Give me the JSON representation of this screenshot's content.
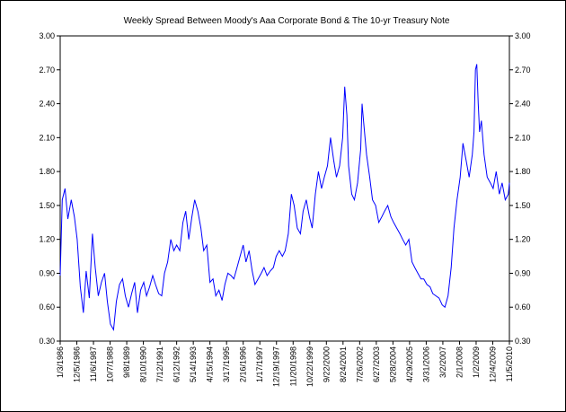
{
  "chart_data": {
    "type": "line",
    "title": "Weekly Spread Between Moody's Aaa Corporate Bond & The 10-yr Treasury Note",
    "xlabel": "",
    "ylabel": "",
    "ylim": [
      0.3,
      3.0
    ],
    "y_ticks": [
      "0.30",
      "0.60",
      "0.90",
      "1.20",
      "1.50",
      "1.80",
      "2.10",
      "2.40",
      "2.70",
      "3.00"
    ],
    "x_range": [
      "1986-01-03",
      "2010-11-05"
    ],
    "x_tick_dates": [
      "1986-01-03",
      "1986-12-05",
      "1987-11-06",
      "1988-10-07",
      "1989-09-08",
      "1990-08-10",
      "1991-07-12",
      "1992-06-12",
      "1993-05-14",
      "1994-04-15",
      "1995-03-17",
      "1996-02-16",
      "1997-01-17",
      "1997-12-19",
      "1998-11-20",
      "1999-10-22",
      "2000-09-22",
      "2001-08-24",
      "2002-07-26",
      "2003-06-27",
      "2004-05-28",
      "2005-04-29",
      "2006-03-31",
      "2007-03-02",
      "2008-02-01",
      "2009-01-02",
      "2009-12-04",
      "2010-11-05"
    ],
    "x_tick_labels": [
      "1/3/1986",
      "12/5/1986",
      "11/6/1987",
      "10/7/1988",
      "9/8/1989",
      "8/10/1990",
      "7/12/1991",
      "6/12/1992",
      "5/14/1993",
      "4/15/1994",
      "3/17/1995",
      "2/16/1996",
      "1/17/1997",
      "12/19/1997",
      "11/20/1998",
      "10/22/1999",
      "9/22/2000",
      "8/24/2001",
      "7/26/2002",
      "6/27/2003",
      "5/28/2004",
      "4/29/2005",
      "3/31/2006",
      "3/2/2007",
      "2/1/2008",
      "1/2/2009",
      "12/4/2009",
      "11/5/2010"
    ],
    "series": [
      {
        "color": "#0000ff",
        "x": [
          "1986-01-03",
          "1986-02-14",
          "1986-04-11",
          "1986-06-06",
          "1986-08-15",
          "1986-10-17",
          "1986-12-12",
          "1987-02-13",
          "1987-04-17",
          "1987-06-12",
          "1987-08-14",
          "1987-10-16",
          "1987-12-11",
          "1988-02-12",
          "1988-04-15",
          "1988-06-17",
          "1988-08-12",
          "1988-10-14",
          "1988-12-16",
          "1989-02-10",
          "1989-04-14",
          "1989-06-16",
          "1989-08-11",
          "1989-10-13",
          "1989-12-15",
          "1990-02-16",
          "1990-04-13",
          "1990-06-15",
          "1990-08-17",
          "1990-10-12",
          "1990-12-14",
          "1991-02-15",
          "1991-04-12",
          "1991-06-14",
          "1991-08-16",
          "1991-10-11",
          "1991-12-13",
          "1992-02-14",
          "1992-04-17",
          "1992-06-12",
          "1992-08-14",
          "1992-10-16",
          "1992-12-11",
          "1993-02-12",
          "1993-04-16",
          "1993-06-11",
          "1993-08-13",
          "1993-10-15",
          "1993-12-10",
          "1994-02-11",
          "1994-04-15",
          "1994-06-17",
          "1994-08-12",
          "1994-10-14",
          "1994-12-16",
          "1995-02-10",
          "1995-04-14",
          "1995-06-16",
          "1995-08-11",
          "1995-10-13",
          "1995-12-15",
          "1996-02-16",
          "1996-04-12",
          "1996-06-14",
          "1996-08-16",
          "1996-10-11",
          "1996-12-13",
          "1997-02-14",
          "1997-04-11",
          "1997-06-13",
          "1997-08-15",
          "1997-10-17",
          "1997-12-12",
          "1998-02-13",
          "1998-04-17",
          "1998-06-12",
          "1998-08-14",
          "1998-10-16",
          "1998-12-11",
          "1999-02-12",
          "1999-04-16",
          "1999-06-11",
          "1999-08-13",
          "1999-10-15",
          "1999-12-10",
          "2000-02-11",
          "2000-04-14",
          "2000-06-16",
          "2000-08-11",
          "2000-10-13",
          "2000-12-15",
          "2001-02-16",
          "2001-04-13",
          "2001-06-15",
          "2001-08-17",
          "2001-09-28",
          "2001-11-09",
          "2001-12-14",
          "2002-02-15",
          "2002-04-12",
          "2002-06-14",
          "2002-08-16",
          "2002-09-13",
          "2002-10-11",
          "2002-12-13",
          "2003-02-14",
          "2003-04-11",
          "2003-06-13",
          "2003-08-15",
          "2003-10-17",
          "2003-12-12",
          "2004-02-13",
          "2004-04-16",
          "2004-06-11",
          "2004-08-13",
          "2004-10-15",
          "2004-12-10",
          "2005-02-11",
          "2005-04-15",
          "2005-06-17",
          "2005-08-12",
          "2005-10-14",
          "2005-12-16",
          "2006-02-10",
          "2006-04-14",
          "2006-06-16",
          "2006-08-11",
          "2006-10-13",
          "2006-12-15",
          "2007-02-16",
          "2007-04-13",
          "2007-06-15",
          "2007-08-17",
          "2007-10-12",
          "2007-12-14",
          "2008-02-15",
          "2008-04-11",
          "2008-06-13",
          "2008-08-15",
          "2008-10-17",
          "2008-11-21",
          "2008-12-19",
          "2009-01-16",
          "2009-02-13",
          "2009-03-13",
          "2009-04-17",
          "2009-06-12",
          "2009-08-14",
          "2009-10-16",
          "2009-12-11",
          "2010-02-12",
          "2010-04-16",
          "2010-06-11",
          "2010-08-13",
          "2010-10-15",
          "2010-11-05"
        ],
        "y": [
          0.88,
          1.55,
          1.65,
          1.38,
          1.55,
          1.4,
          1.2,
          0.78,
          0.55,
          0.92,
          0.68,
          1.25,
          0.95,
          0.7,
          0.82,
          0.9,
          0.65,
          0.45,
          0.4,
          0.65,
          0.8,
          0.85,
          0.7,
          0.6,
          0.72,
          0.82,
          0.55,
          0.75,
          0.82,
          0.7,
          0.78,
          0.88,
          0.8,
          0.72,
          0.7,
          0.9,
          1.0,
          1.2,
          1.1,
          1.15,
          1.1,
          1.35,
          1.45,
          1.2,
          1.4,
          1.55,
          1.45,
          1.3,
          1.1,
          1.15,
          0.82,
          0.85,
          0.7,
          0.75,
          0.66,
          0.8,
          0.9,
          0.88,
          0.85,
          0.95,
          1.05,
          1.15,
          1.0,
          1.1,
          0.92,
          0.8,
          0.85,
          0.9,
          0.95,
          0.88,
          0.92,
          0.95,
          1.05,
          1.1,
          1.05,
          1.1,
          1.25,
          1.6,
          1.5,
          1.3,
          1.25,
          1.45,
          1.55,
          1.4,
          1.3,
          1.6,
          1.8,
          1.65,
          1.75,
          1.85,
          2.1,
          1.9,
          1.75,
          1.85,
          2.1,
          2.55,
          2.3,
          1.85,
          1.6,
          1.55,
          1.7,
          2.0,
          2.4,
          2.25,
          1.95,
          1.75,
          1.55,
          1.5,
          1.35,
          1.4,
          1.45,
          1.5,
          1.4,
          1.35,
          1.3,
          1.25,
          1.2,
          1.15,
          1.2,
          1.0,
          0.95,
          0.9,
          0.85,
          0.85,
          0.8,
          0.78,
          0.72,
          0.7,
          0.68,
          0.62,
          0.6,
          0.7,
          0.95,
          1.3,
          1.55,
          1.75,
          2.05,
          1.9,
          1.75,
          1.95,
          2.15,
          2.7,
          2.75,
          2.4,
          2.15,
          2.25,
          1.95,
          1.75,
          1.7,
          1.65,
          1.8,
          1.6,
          1.7,
          1.55,
          1.6,
          1.7
        ]
      }
    ],
    "grid": false,
    "legend": "none"
  }
}
